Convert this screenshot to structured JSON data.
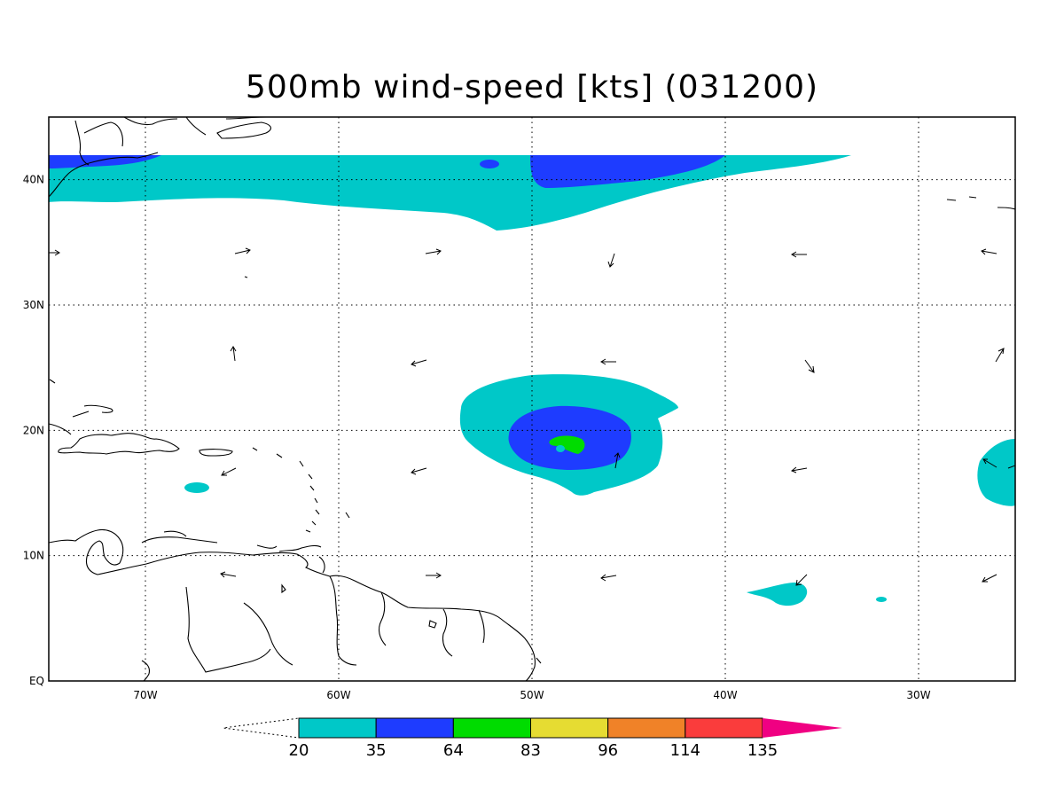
{
  "title": "500mb wind-speed [kts] (031200)",
  "map": {
    "lon_range": [
      -75,
      -25
    ],
    "lat_range": [
      0,
      45
    ],
    "x_ticks": [
      {
        "lon": -70,
        "label": "70W"
      },
      {
        "lon": -60,
        "label": "60W"
      },
      {
        "lon": -50,
        "label": "50W"
      },
      {
        "lon": -40,
        "label": "40W"
      },
      {
        "lon": -30,
        "label": "30W"
      }
    ],
    "y_ticks": [
      {
        "lat": 0,
        "label": "EQ"
      },
      {
        "lat": 10,
        "label": "10N"
      },
      {
        "lat": 20,
        "label": "20N"
      },
      {
        "lat": 30,
        "label": "30N"
      },
      {
        "lat": 40,
        "label": "40N"
      }
    ],
    "gridlines": "dotted"
  },
  "colorbar": {
    "levels": [
      "20",
      "35",
      "64",
      "83",
      "96",
      "114",
      "135"
    ],
    "colors": [
      "#00c8c8",
      "#1e3cff",
      "#00dc00",
      "#e6dc32",
      "#f08228",
      "#fa3c3c",
      "#f00082"
    ],
    "extend_low": "white",
    "extend_high": "#f00082"
  },
  "colors": {
    "cyan": "#00c8c8",
    "blue": "#1e3cff",
    "green": "#00dc00"
  }
}
